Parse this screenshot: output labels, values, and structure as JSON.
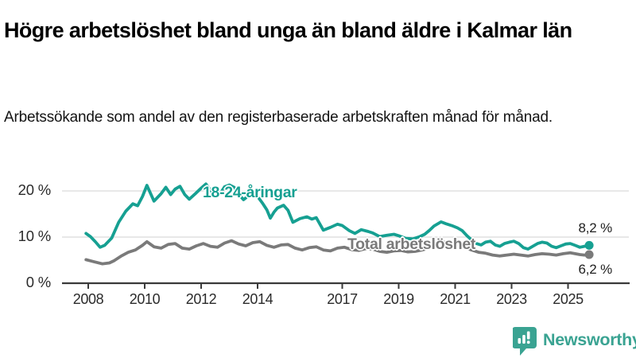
{
  "header": {
    "title": "Högre arbetslöshet bland unga än bland äldre i Kalmar län",
    "subtitle": "Arbetssökande som andel av den registerbaserade arbetskraften månad för månad."
  },
  "branding": {
    "name": "Newsworthy",
    "color": "#3aa392",
    "logo_icon": "bar-chart-speech-bubble"
  },
  "chart_data": {
    "type": "line",
    "title": "Högre arbetslöshet bland unga än bland äldre i Kalmar län",
    "subtitle": "Arbetssökande som andel av den registerbaserade arbetskraften månad för månad.",
    "xlabel": "",
    "ylabel": "",
    "x_range": [
      2007.9,
      2025.9
    ],
    "y_range": [
      0,
      22
    ],
    "grid": "horizontal",
    "legend_position": "inline-labels",
    "colors": {
      "grid": "#d9d9d9",
      "axis": "#3a3a3a",
      "tick_text": "#2b2b2b",
      "value_text": "#1f1f1f"
    },
    "x_axis": {
      "ticks": [
        {
          "value": 2008,
          "label": "2008"
        },
        {
          "value": 2010,
          "label": "2010"
        },
        {
          "value": 2012,
          "label": "2012"
        },
        {
          "value": 2014,
          "label": "2014"
        },
        {
          "value": 2017,
          "label": "2017"
        },
        {
          "value": 2019,
          "label": "2019"
        },
        {
          "value": 2021,
          "label": "2021"
        },
        {
          "value": 2023,
          "label": "2023"
        },
        {
          "value": 2025,
          "label": "2025"
        }
      ]
    },
    "y_axis": {
      "ticks": [
        {
          "value": 0,
          "label": "0 %"
        },
        {
          "value": 10,
          "label": "10 %"
        },
        {
          "value": 20,
          "label": "20 %"
        }
      ]
    },
    "series": [
      {
        "id": "youth",
        "name": "18-24-åringar",
        "color": "#16a092",
        "end_value": 8.2,
        "end_label": "8,2 %",
        "points": [
          [
            2007.92,
            10.8
          ],
          [
            2008.08,
            10.1
          ],
          [
            2008.25,
            9.0
          ],
          [
            2008.42,
            7.8
          ],
          [
            2008.58,
            8.2
          ],
          [
            2008.83,
            9.8
          ],
          [
            2009.08,
            13.2
          ],
          [
            2009.33,
            15.6
          ],
          [
            2009.58,
            17.2
          ],
          [
            2009.75,
            16.8
          ],
          [
            2009.92,
            18.8
          ],
          [
            2010.08,
            21.2
          ],
          [
            2010.33,
            17.8
          ],
          [
            2010.58,
            19.4
          ],
          [
            2010.75,
            20.8
          ],
          [
            2010.92,
            19.2
          ],
          [
            2011.08,
            20.4
          ],
          [
            2011.25,
            21.0
          ],
          [
            2011.42,
            19.2
          ],
          [
            2011.58,
            18.2
          ],
          [
            2011.83,
            19.6
          ],
          [
            2012.0,
            20.6
          ],
          [
            2012.17,
            21.5
          ],
          [
            2012.33,
            20.2
          ],
          [
            2012.5,
            18.7
          ],
          [
            2012.67,
            19.4
          ],
          [
            2012.83,
            20.9
          ],
          [
            2013.0,
            21.3
          ],
          [
            2013.17,
            20.8
          ],
          [
            2013.33,
            19.3
          ],
          [
            2013.5,
            18.1
          ],
          [
            2013.67,
            18.9
          ],
          [
            2013.83,
            19.6
          ],
          [
            2014.0,
            18.8
          ],
          [
            2014.17,
            17.4
          ],
          [
            2014.33,
            15.9
          ],
          [
            2014.45,
            14.1
          ],
          [
            2014.58,
            15.4
          ],
          [
            2014.7,
            16.3
          ],
          [
            2014.92,
            16.9
          ],
          [
            2015.08,
            15.8
          ],
          [
            2015.25,
            13.2
          ],
          [
            2015.5,
            14.0
          ],
          [
            2015.75,
            14.4
          ],
          [
            2015.92,
            13.9
          ],
          [
            2016.08,
            14.2
          ],
          [
            2016.33,
            11.5
          ],
          [
            2016.58,
            12.1
          ],
          [
            2016.83,
            12.8
          ],
          [
            2017.0,
            12.5
          ],
          [
            2017.25,
            11.4
          ],
          [
            2017.45,
            10.8
          ],
          [
            2017.67,
            11.6
          ],
          [
            2017.92,
            11.2
          ],
          [
            2018.08,
            10.9
          ],
          [
            2018.33,
            10.1
          ],
          [
            2018.58,
            10.4
          ],
          [
            2018.83,
            10.6
          ],
          [
            2019.0,
            10.3
          ],
          [
            2019.25,
            9.7
          ],
          [
            2019.5,
            9.6
          ],
          [
            2019.75,
            10.1
          ],
          [
            2019.92,
            10.6
          ],
          [
            2020.08,
            11.4
          ],
          [
            2020.25,
            12.4
          ],
          [
            2020.5,
            13.3
          ],
          [
            2020.67,
            12.9
          ],
          [
            2020.92,
            12.4
          ],
          [
            2021.08,
            12.0
          ],
          [
            2021.25,
            11.4
          ],
          [
            2021.42,
            10.3
          ],
          [
            2021.58,
            9.4
          ],
          [
            2021.75,
            8.6
          ],
          [
            2021.92,
            8.3
          ],
          [
            2022.08,
            8.9
          ],
          [
            2022.25,
            9.1
          ],
          [
            2022.42,
            8.3
          ],
          [
            2022.58,
            8.0
          ],
          [
            2022.75,
            8.6
          ],
          [
            2022.92,
            8.9
          ],
          [
            2023.08,
            9.1
          ],
          [
            2023.25,
            8.6
          ],
          [
            2023.42,
            7.7
          ],
          [
            2023.58,
            7.4
          ],
          [
            2023.75,
            8.0
          ],
          [
            2023.92,
            8.6
          ],
          [
            2024.08,
            8.9
          ],
          [
            2024.25,
            8.7
          ],
          [
            2024.42,
            8.0
          ],
          [
            2024.58,
            7.7
          ],
          [
            2024.75,
            8.1
          ],
          [
            2024.92,
            8.5
          ],
          [
            2025.08,
            8.6
          ],
          [
            2025.25,
            8.2
          ],
          [
            2025.42,
            7.8
          ],
          [
            2025.58,
            8.0
          ],
          [
            2025.75,
            8.2
          ]
        ]
      },
      {
        "id": "total",
        "name": "Total arbetslöshet",
        "color": "#7a7a7a",
        "end_value": 6.2,
        "end_label": "6,2 %",
        "points": [
          [
            2007.92,
            5.1
          ],
          [
            2008.17,
            4.7
          ],
          [
            2008.5,
            4.2
          ],
          [
            2008.75,
            4.4
          ],
          [
            2008.92,
            4.9
          ],
          [
            2009.17,
            5.9
          ],
          [
            2009.42,
            6.7
          ],
          [
            2009.67,
            7.2
          ],
          [
            2009.92,
            8.2
          ],
          [
            2010.08,
            9.0
          ],
          [
            2010.33,
            7.9
          ],
          [
            2010.58,
            7.6
          ],
          [
            2010.83,
            8.4
          ],
          [
            2011.08,
            8.6
          ],
          [
            2011.33,
            7.6
          ],
          [
            2011.58,
            7.4
          ],
          [
            2011.83,
            8.1
          ],
          [
            2012.08,
            8.6
          ],
          [
            2012.33,
            8.0
          ],
          [
            2012.58,
            7.8
          ],
          [
            2012.83,
            8.7
          ],
          [
            2013.08,
            9.2
          ],
          [
            2013.33,
            8.5
          ],
          [
            2013.58,
            8.1
          ],
          [
            2013.83,
            8.8
          ],
          [
            2014.08,
            9.0
          ],
          [
            2014.33,
            8.2
          ],
          [
            2014.58,
            7.8
          ],
          [
            2014.83,
            8.3
          ],
          [
            2015.08,
            8.4
          ],
          [
            2015.33,
            7.6
          ],
          [
            2015.58,
            7.2
          ],
          [
            2015.83,
            7.7
          ],
          [
            2016.08,
            7.9
          ],
          [
            2016.33,
            7.2
          ],
          [
            2016.58,
            7.0
          ],
          [
            2016.83,
            7.6
          ],
          [
            2017.08,
            7.8
          ],
          [
            2017.33,
            7.3
          ],
          [
            2017.58,
            7.1
          ],
          [
            2017.83,
            7.5
          ],
          [
            2018.08,
            7.4
          ],
          [
            2018.33,
            6.9
          ],
          [
            2018.58,
            6.7
          ],
          [
            2018.83,
            7.0
          ],
          [
            2019.08,
            7.1
          ],
          [
            2019.33,
            6.8
          ],
          [
            2019.58,
            6.9
          ],
          [
            2019.83,
            7.2
          ],
          [
            2020.08,
            7.6
          ],
          [
            2020.33,
            8.6
          ],
          [
            2020.5,
            9.0
          ],
          [
            2020.83,
            8.6
          ],
          [
            2021.08,
            8.3
          ],
          [
            2021.33,
            7.8
          ],
          [
            2021.58,
            7.2
          ],
          [
            2021.83,
            6.7
          ],
          [
            2022.08,
            6.5
          ],
          [
            2022.33,
            6.1
          ],
          [
            2022.58,
            5.9
          ],
          [
            2022.83,
            6.1
          ],
          [
            2023.08,
            6.3
          ],
          [
            2023.33,
            6.1
          ],
          [
            2023.58,
            5.9
          ],
          [
            2023.83,
            6.2
          ],
          [
            2024.08,
            6.4
          ],
          [
            2024.33,
            6.3
          ],
          [
            2024.58,
            6.1
          ],
          [
            2024.83,
            6.4
          ],
          [
            2025.08,
            6.6
          ],
          [
            2025.25,
            6.4
          ],
          [
            2025.42,
            6.2
          ],
          [
            2025.58,
            6.1
          ],
          [
            2025.75,
            6.2
          ]
        ]
      }
    ]
  }
}
